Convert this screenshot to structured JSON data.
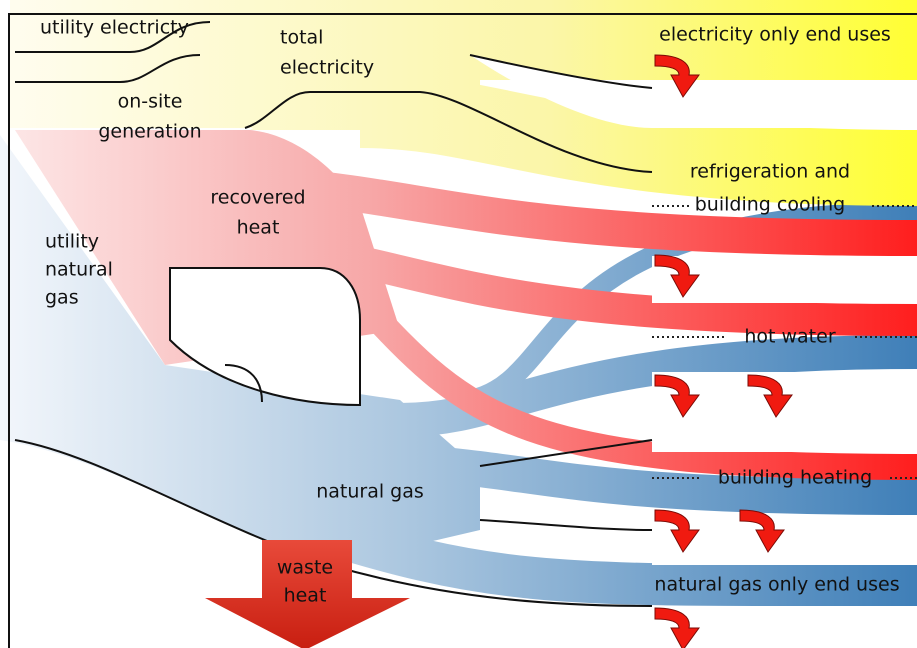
{
  "labels": [
    {
      "lines": [
        "utility electricty"
      ]
    },
    {
      "lines": [
        "total",
        "electricity"
      ]
    },
    {
      "lines": [
        "on-site",
        "generation"
      ]
    },
    {
      "lines": [
        "recovered",
        "heat"
      ]
    },
    {
      "lines": [
        "utility",
        "natural",
        "gas"
      ]
    },
    {
      "lines": [
        "electricity only end uses"
      ]
    },
    {
      "lines": [
        "refrigeration and",
        "building cooling"
      ]
    },
    {
      "lines": [
        "hot water"
      ]
    },
    {
      "lines": [
        "building heating"
      ]
    },
    {
      "lines": [
        "natural gas"
      ]
    },
    {
      "lines": [
        "natural gas only end uses"
      ]
    },
    {
      "lines": [
        "waste",
        "heat"
      ]
    }
  ]
}
